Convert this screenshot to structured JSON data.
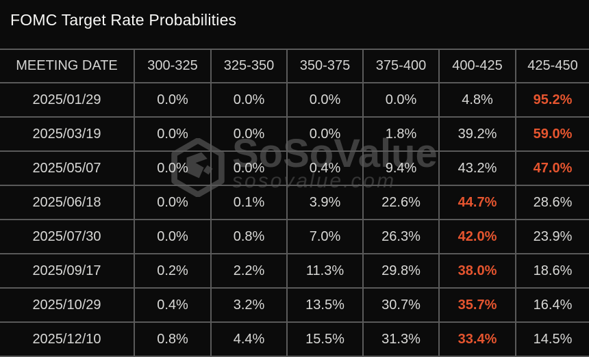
{
  "title": "FOMC Target Rate Probabilities",
  "table": {
    "columns": [
      "MEETING DATE",
      "300-325",
      "325-350",
      "350-375",
      "375-400",
      "400-425",
      "425-450"
    ],
    "rows": [
      {
        "date": "2025/01/29",
        "values": [
          "0.0%",
          "0.0%",
          "0.0%",
          "0.0%",
          "4.8%",
          "95.2%"
        ],
        "highlight_index": 5
      },
      {
        "date": "2025/03/19",
        "values": [
          "0.0%",
          "0.0%",
          "0.0%",
          "1.8%",
          "39.2%",
          "59.0%"
        ],
        "highlight_index": 5
      },
      {
        "date": "2025/05/07",
        "values": [
          "0.0%",
          "0.0%",
          "0.4%",
          "9.4%",
          "43.2%",
          "47.0%"
        ],
        "highlight_index": 5
      },
      {
        "date": "2025/06/18",
        "values": [
          "0.0%",
          "0.1%",
          "3.9%",
          "22.6%",
          "44.7%",
          "28.6%"
        ],
        "highlight_index": 4
      },
      {
        "date": "2025/07/30",
        "values": [
          "0.0%",
          "0.8%",
          "7.0%",
          "26.3%",
          "42.0%",
          "23.9%"
        ],
        "highlight_index": 4
      },
      {
        "date": "2025/09/17",
        "values": [
          "0.2%",
          "2.2%",
          "11.3%",
          "29.8%",
          "38.0%",
          "18.6%"
        ],
        "highlight_index": 4
      },
      {
        "date": "2025/10/29",
        "values": [
          "0.4%",
          "3.2%",
          "13.5%",
          "30.7%",
          "35.7%",
          "16.4%"
        ],
        "highlight_index": 4
      },
      {
        "date": "2025/12/10",
        "values": [
          "0.8%",
          "4.4%",
          "15.5%",
          "31.3%",
          "33.4%",
          "14.5%"
        ],
        "highlight_index": 4
      }
    ]
  },
  "watermark": {
    "brand": "SoSoValue",
    "url": "sosovalue.com",
    "logo_icon": "sosovalue-cube-icon"
  },
  "colors": {
    "accent": "#e6552f",
    "border": "#5a5a5a",
    "text": "#d9d9d7",
    "background": "#0b0b0b"
  }
}
